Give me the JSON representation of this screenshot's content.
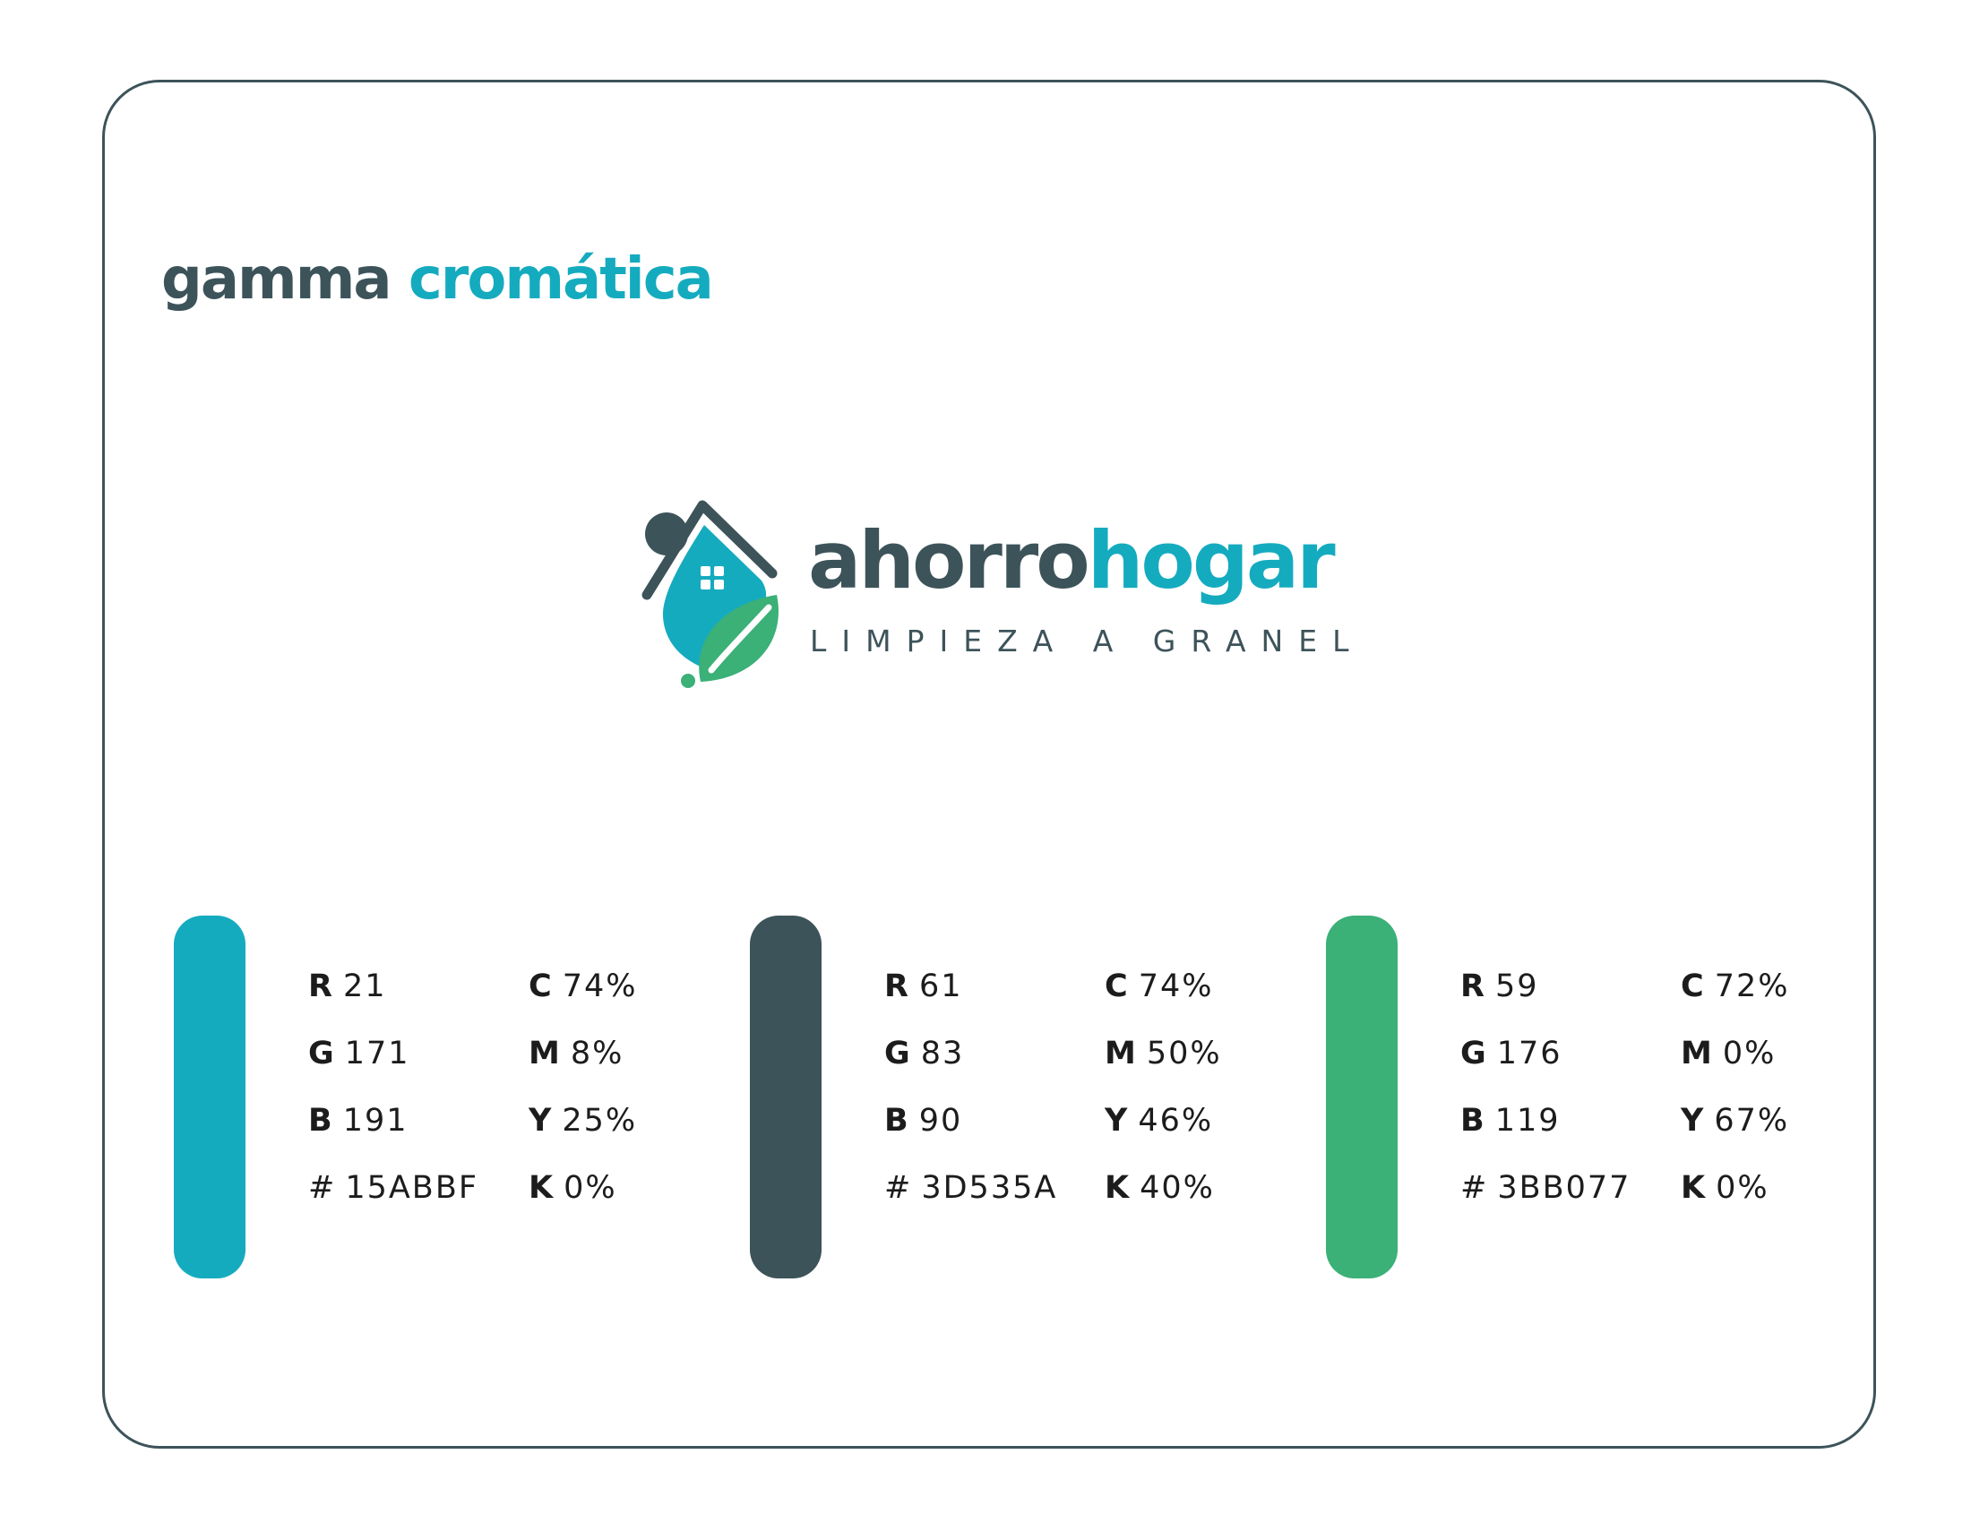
{
  "header": {
    "title_part1": "gamma",
    "title_part2": "cromática"
  },
  "logo": {
    "name_part1": "ahorro",
    "name_part2": "hogar",
    "tagline": "LIMPIEZA A GRANEL"
  },
  "labels": {
    "r": "R",
    "g": "G",
    "b": "B",
    "hex": "#",
    "c": "C",
    "m": "M",
    "y": "Y",
    "k": "K"
  },
  "swatches": [
    {
      "color": "#15ABBF",
      "r": "21",
      "g": "171",
      "b": "191",
      "hex": "15ABBF",
      "c": "74%",
      "m": "8%",
      "y": "25%",
      "k": "0%"
    },
    {
      "color": "#3D535A",
      "r": "61",
      "g": "83",
      "b": "90",
      "hex": "3D535A",
      "c": "74%",
      "m": "50%",
      "y": "46%",
      "k": "40%"
    },
    {
      "color": "#3BB077",
      "r": "59",
      "g": "176",
      "b": "119",
      "hex": "3BB077",
      "c": "72%",
      "m": "0%",
      "y": "67%",
      "k": "0%"
    }
  ],
  "colors": {
    "border": "#3D535A",
    "accent": "#15ABBF",
    "dark": "#3D535A",
    "green": "#3BB077"
  }
}
